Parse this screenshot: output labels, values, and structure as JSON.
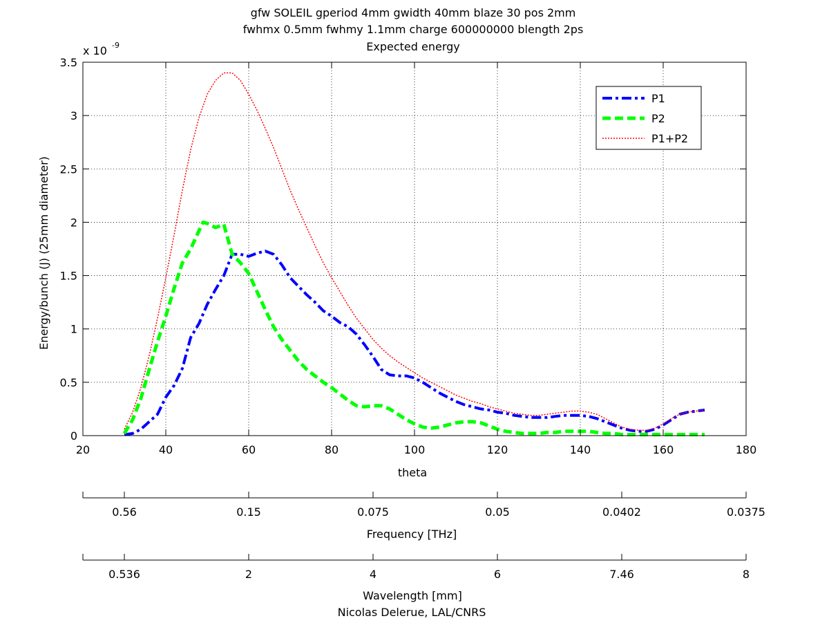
{
  "chart_data": {
    "type": "line",
    "title_lines": [
      "gfw SOLEIL gperiod 4mm gwidth 40mm blaze 30 pos 2mm",
      "fwhmx 0.5mm fwhmy 1.1mm charge 600000000 blength 2ps",
      "Expected energy"
    ],
    "xlabel": "theta",
    "ylabel": "Energy/bunch (J) (25mm diameter)",
    "y_exponent_label": "x 10",
    "y_exponent_power": "-9",
    "xlim": [
      20,
      180
    ],
    "ylim": [
      0,
      3.5e-09
    ],
    "x_ticks": [
      "20",
      "40",
      "60",
      "80",
      "100",
      "120",
      "140",
      "160",
      "180"
    ],
    "y_ticks": [
      "0",
      "0.5",
      "1",
      "1.5",
      "2",
      "2.5",
      "3",
      "3.5"
    ],
    "grid": true,
    "legend_position": "top-right",
    "series": [
      {
        "name": "P1",
        "color": "#0000ff",
        "style": "dash-dot",
        "x": [
          30,
          32,
          34,
          36,
          38,
          40,
          42,
          44,
          46,
          48,
          50,
          52,
          54,
          56,
          58,
          60,
          62,
          64,
          66,
          68,
          70,
          72,
          74,
          76,
          78,
          80,
          82,
          84,
          86,
          88,
          90,
          92,
          94,
          96,
          98,
          100,
          102,
          104,
          106,
          108,
          110,
          112,
          114,
          116,
          118,
          120,
          122,
          124,
          126,
          128,
          130,
          132,
          134,
          136,
          138,
          140,
          142,
          144,
          146,
          148,
          150,
          152,
          154,
          156,
          158,
          160,
          162,
          164,
          166,
          168,
          170
        ],
        "y": [
          1e-11,
          2e-11,
          6e-11,
          1.3e-10,
          2e-10,
          3.6e-10,
          4.7e-10,
          6.3e-10,
          9.2e-10,
          1.05e-09,
          1.23e-09,
          1.37e-09,
          1.5e-09,
          1.7e-09,
          1.7e-09,
          1.68e-09,
          1.71e-09,
          1.73e-09,
          1.7e-09,
          1.6e-09,
          1.48e-09,
          1.4e-09,
          1.32e-09,
          1.25e-09,
          1.17e-09,
          1.12e-09,
          1.06e-09,
          1.02e-09,
          9.5e-10,
          8.5e-10,
          7.4e-10,
          6.2e-10,
          5.7e-10,
          5.6e-10,
          5.6e-10,
          5.4e-10,
          5e-10,
          4.5e-10,
          4e-10,
          3.6e-10,
          3.2e-10,
          2.9e-10,
          2.7e-10,
          2.5e-10,
          2.4e-10,
          2.2e-10,
          2.1e-10,
          1.9e-10,
          1.8e-10,
          1.7e-10,
          1.7e-10,
          1.7e-10,
          1.8e-10,
          1.9e-10,
          1.9e-10,
          1.9e-10,
          1.8e-10,
          1.6e-10,
          1.3e-10,
          1e-10,
          7e-11,
          5e-11,
          4e-11,
          4e-11,
          6e-11,
          1e-10,
          1.5e-10,
          2e-10,
          2.2e-10,
          2.3e-10,
          2.4e-10
        ]
      },
      {
        "name": "P2",
        "color": "#00ff00",
        "style": "dashed",
        "x": [
          30,
          32,
          34,
          36,
          38,
          40,
          42,
          44,
          46,
          48,
          49,
          50,
          52,
          54,
          56,
          58,
          60,
          62,
          64,
          66,
          68,
          70,
          72,
          74,
          76,
          78,
          80,
          82,
          84,
          86,
          88,
          90,
          92,
          94,
          96,
          98,
          100,
          102,
          104,
          106,
          108,
          110,
          112,
          114,
          116,
          118,
          120,
          122,
          124,
          126,
          128,
          130,
          132,
          134,
          136,
          138,
          140,
          142,
          144,
          146,
          148,
          150,
          155,
          160,
          165,
          170
        ],
        "y": [
          2e-11,
          1.5e-10,
          3.5e-10,
          6.2e-10,
          8.8e-10,
          1.12e-09,
          1.38e-09,
          1.62e-09,
          1.75e-09,
          1.92e-09,
          2e-09,
          1.99e-09,
          1.95e-09,
          1.98e-09,
          1.7e-09,
          1.62e-09,
          1.52e-09,
          1.35e-09,
          1.18e-09,
          1.02e-09,
          9e-10,
          8e-10,
          7e-10,
          6.2e-10,
          5.6e-10,
          5e-10,
          4.5e-10,
          3.9e-10,
          3.3e-10,
          2.8e-10,
          2.7e-10,
          2.8e-10,
          2.8e-10,
          2.5e-10,
          2e-10,
          1.5e-10,
          1.1e-10,
          8e-11,
          7e-11,
          8e-11,
          1e-10,
          1.2e-10,
          1.3e-10,
          1.3e-10,
          1.2e-10,
          9e-11,
          6e-11,
          4e-11,
          3e-11,
          2e-11,
          2e-11,
          2e-11,
          3e-11,
          3e-11,
          4e-11,
          4e-11,
          4e-11,
          4e-11,
          3e-11,
          2e-11,
          2e-11,
          1e-11,
          1e-11,
          1e-11,
          1e-11,
          1e-11
        ]
      },
      {
        "name": "P1+P2",
        "color": "#ff0000",
        "style": "dotted",
        "x": [
          30,
          32,
          34,
          36,
          38,
          40,
          42,
          44,
          46,
          48,
          50,
          52,
          54,
          56,
          58,
          60,
          62,
          64,
          66,
          68,
          70,
          72,
          74,
          76,
          78,
          80,
          82,
          84,
          86,
          88,
          90,
          92,
          94,
          96,
          98,
          100,
          102,
          104,
          106,
          108,
          110,
          112,
          114,
          116,
          118,
          120,
          122,
          124,
          126,
          128,
          130,
          132,
          134,
          136,
          138,
          140,
          142,
          144,
          146,
          148,
          150,
          152,
          154,
          156,
          158,
          160,
          162,
          164,
          166,
          168,
          170
        ],
        "y": [
          6e-11,
          2.2e-10,
          4.5e-10,
          7.5e-10,
          1.1e-09,
          1.48e-09,
          1.88e-09,
          2.3e-09,
          2.68e-09,
          2.98e-09,
          3.2e-09,
          3.33e-09,
          3.4e-09,
          3.4e-09,
          3.33e-09,
          3.2e-09,
          3.05e-09,
          2.88e-09,
          2.7e-09,
          2.5e-09,
          2.3e-09,
          2.12e-09,
          1.95e-09,
          1.78e-09,
          1.62e-09,
          1.48e-09,
          1.35e-09,
          1.22e-09,
          1.1e-09,
          1e-09,
          9e-10,
          8.2e-10,
          7.5e-10,
          6.9e-10,
          6.4e-10,
          5.9e-10,
          5.4e-10,
          5e-10,
          4.6e-10,
          4.2e-10,
          3.8e-10,
          3.5e-10,
          3.2e-10,
          3e-10,
          2.7e-10,
          2.5e-10,
          2.3e-10,
          2.1e-10,
          2e-10,
          1.9e-10,
          1.9e-10,
          2e-10,
          2.1e-10,
          2.2e-10,
          2.3e-10,
          2.3e-10,
          2.2e-10,
          2e-10,
          1.6e-10,
          1.2e-10,
          8e-11,
          6e-11,
          5e-11,
          5e-11,
          7e-11,
          1.1e-10,
          1.6e-10,
          2e-10,
          2.2e-10,
          2.3e-10,
          2.4e-10
        ]
      }
    ],
    "frequency_axis": {
      "label": "Frequency [THz]",
      "ticks": [
        "0.56",
        "0.15",
        "0.075",
        "0.05",
        "0.0402",
        "0.0375"
      ]
    },
    "wavelength_axis": {
      "label": "Wavelength [mm]",
      "ticks": [
        "0.536",
        "2",
        "4",
        "6",
        "7.46",
        "8"
      ]
    },
    "footer": "Nicolas Delerue, LAL/CNRS"
  }
}
